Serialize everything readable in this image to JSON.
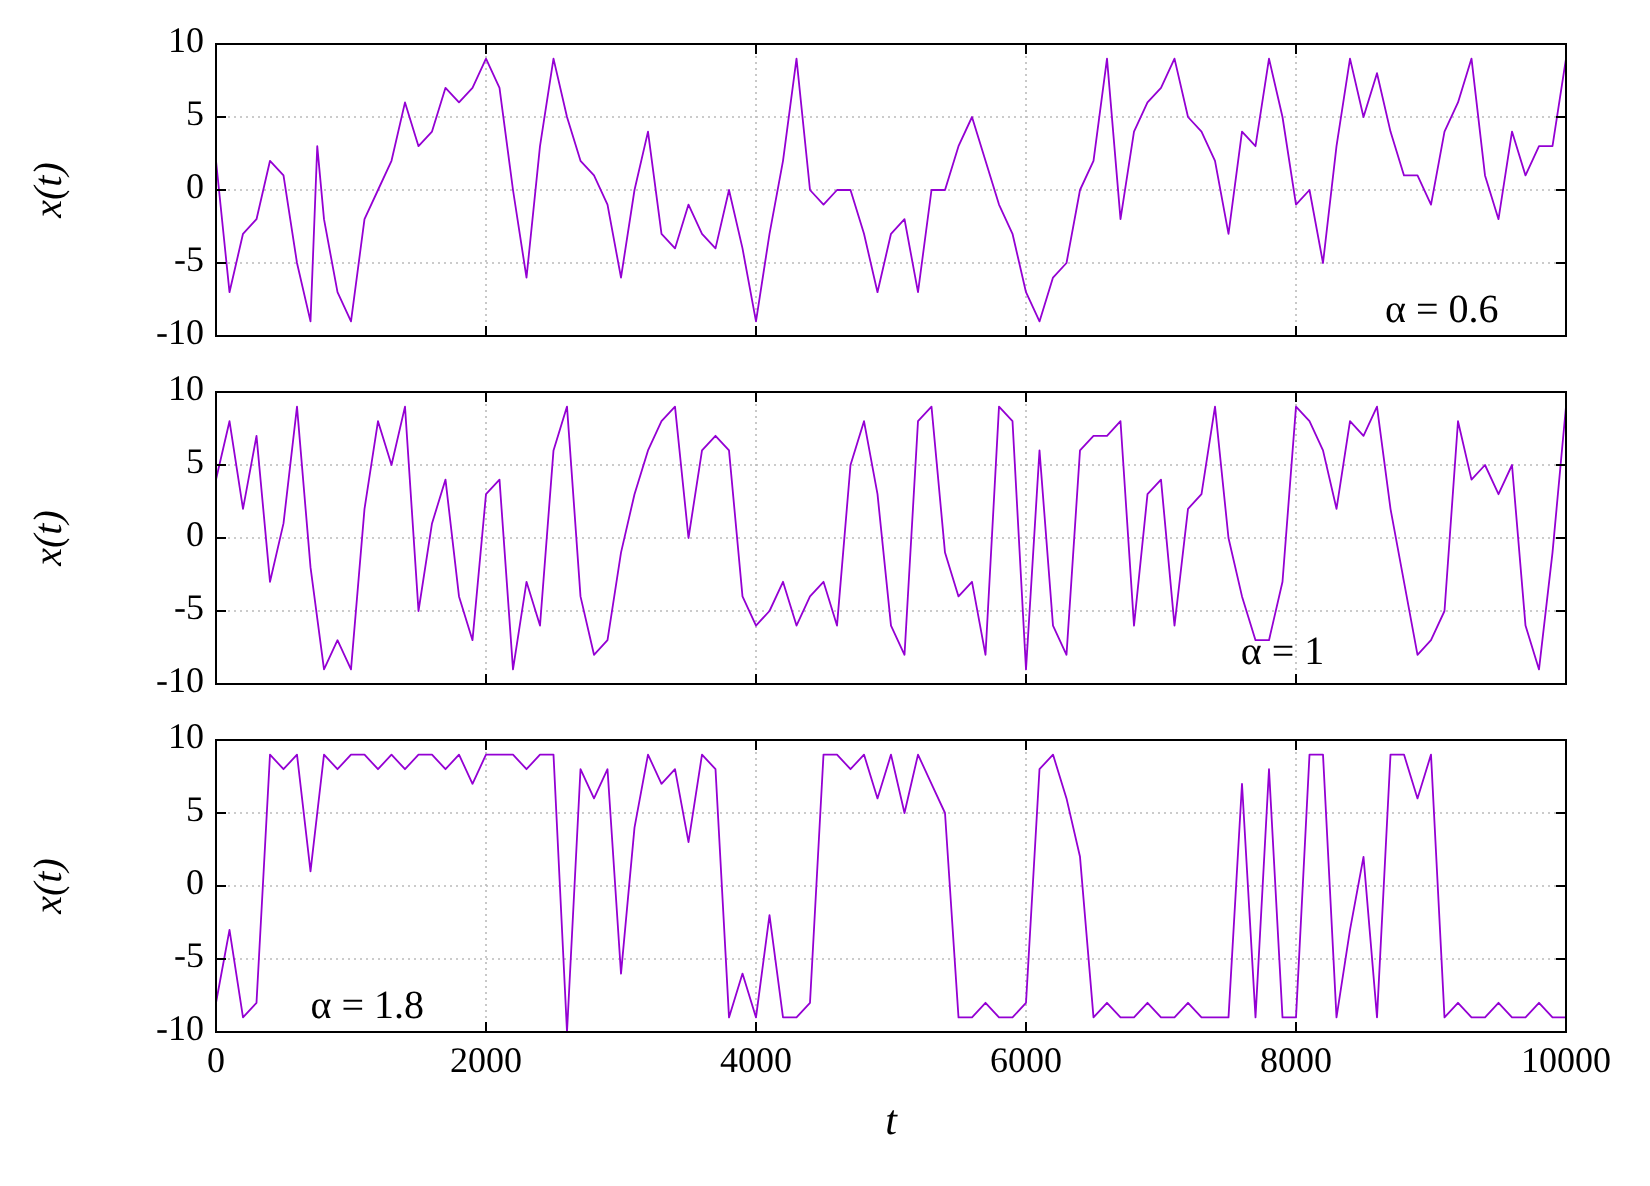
{
  "chart_data": [
    {
      "type": "line",
      "ylabel": "x(t)",
      "annotations": [
        "α = 0.6"
      ],
      "xlim": [
        0,
        10000
      ],
      "xticks": [
        0,
        2000,
        4000,
        6000,
        8000,
        10000
      ],
      "ylim": [
        -10,
        10
      ],
      "yticks": [
        -10,
        -5,
        0,
        5,
        10
      ],
      "grid": true,
      "tick_labels": "y",
      "line_style": "solid",
      "series": [
        {
          "color": "#9400d3",
          "x": [
            0,
            100,
            200,
            300,
            400,
            500,
            600,
            700,
            750,
            800,
            900,
            1000,
            1100,
            1200,
            1300,
            1400,
            1500,
            1600,
            1700,
            1800,
            1900,
            2000,
            2100,
            2200,
            2300,
            2400,
            2500,
            2600,
            2700,
            2800,
            2900,
            3000,
            3100,
            3200,
            3300,
            3400,
            3500,
            3600,
            3700,
            3800,
            3900,
            4000,
            4100,
            4200,
            4300,
            4400,
            4500,
            4600,
            4700,
            4800,
            4900,
            5000,
            5100,
            5200,
            5300,
            5400,
            5500,
            5600,
            5700,
            5800,
            5900,
            6000,
            6100,
            6200,
            6300,
            6400,
            6500,
            6600,
            6700,
            6800,
            6900,
            7000,
            7100,
            7200,
            7300,
            7400,
            7500,
            7600,
            7700,
            7800,
            7900,
            8000,
            8100,
            8200,
            8300,
            8400,
            8500,
            8600,
            8700,
            8800,
            8900,
            9000,
            9100,
            9200,
            9300,
            9400,
            9500,
            9600,
            9700,
            9800,
            9900,
            10000
          ],
          "values": [
            2,
            -7,
            -3,
            -2,
            2,
            1,
            -5,
            -9,
            3,
            -2,
            -7,
            -9,
            -2,
            0,
            2,
            6,
            3,
            4,
            7,
            6,
            7,
            9,
            7,
            0,
            -6,
            3,
            9,
            5,
            2,
            1,
            -1,
            -6,
            0,
            4,
            -3,
            -4,
            -1,
            -3,
            -4,
            0,
            -4,
            -9,
            -3,
            2,
            9,
            0,
            -1,
            0,
            0,
            -3,
            -7,
            -3,
            -2,
            -7,
            0,
            0,
            3,
            5,
            2,
            -1,
            -3,
            -7,
            -9,
            -6,
            -5,
            0,
            2,
            9,
            -2,
            4,
            6,
            7,
            9,
            5,
            4,
            2,
            -3,
            4,
            3,
            9,
            5,
            -1,
            0,
            -5,
            3,
            9,
            5,
            8,
            4,
            1,
            1,
            -1,
            4,
            6,
            9,
            1,
            -2,
            4,
            1,
            3,
            3,
            9
          ]
        }
      ]
    },
    {
      "type": "line",
      "ylabel": "x(t)",
      "annotations": [
        "α = 1"
      ],
      "xlim": [
        0,
        10000
      ],
      "xticks": [
        0,
        2000,
        4000,
        6000,
        8000,
        10000
      ],
      "ylim": [
        -10,
        10
      ],
      "yticks": [
        -10,
        -5,
        0,
        5,
        10
      ],
      "grid": true,
      "tick_labels": "y",
      "line_style": "solid",
      "series": [
        {
          "color": "#9400d3",
          "x": [
            0,
            100,
            200,
            300,
            400,
            500,
            600,
            700,
            800,
            900,
            1000,
            1100,
            1200,
            1300,
            1400,
            1500,
            1600,
            1700,
            1800,
            1900,
            2000,
            2100,
            2200,
            2300,
            2400,
            2500,
            2600,
            2700,
            2800,
            2900,
            3000,
            3100,
            3200,
            3300,
            3400,
            3500,
            3600,
            3700,
            3800,
            3900,
            4000,
            4100,
            4200,
            4300,
            4400,
            4500,
            4600,
            4700,
            4800,
            4900,
            5000,
            5100,
            5200,
            5300,
            5400,
            5500,
            5600,
            5700,
            5800,
            5900,
            6000,
            6100,
            6200,
            6300,
            6400,
            6500,
            6600,
            6700,
            6800,
            6900,
            7000,
            7100,
            7200,
            7300,
            7400,
            7500,
            7600,
            7700,
            7800,
            7900,
            8000,
            8100,
            8200,
            8300,
            8400,
            8500,
            8600,
            8700,
            8800,
            8900,
            9000,
            9100,
            9200,
            9300,
            9400,
            9500,
            9600,
            9700,
            9800,
            9900,
            10000
          ],
          "values": [
            4,
            8,
            2,
            7,
            -3,
            1,
            9,
            -2,
            -9,
            -7,
            -9,
            2,
            8,
            5,
            9,
            -5,
            1,
            4,
            -4,
            -7,
            3,
            4,
            -9,
            -3,
            -6,
            6,
            9,
            -4,
            -8,
            -7,
            -1,
            3,
            6,
            8,
            9,
            0,
            6,
            7,
            6,
            -4,
            -6,
            -5,
            -3,
            -6,
            -4,
            -3,
            -6,
            5,
            8,
            3,
            -6,
            -8,
            8,
            9,
            -1,
            -4,
            -3,
            -8,
            9,
            8,
            -9,
            6,
            -6,
            -8,
            6,
            7,
            7,
            8,
            -6,
            3,
            4,
            -6,
            2,
            3,
            9,
            0,
            -4,
            -7,
            -7,
            -3,
            9,
            8,
            6,
            2,
            8,
            7,
            9,
            2,
            -3,
            -8,
            -7,
            -5,
            8,
            4,
            5,
            3,
            5,
            -6,
            -9,
            -1,
            9
          ]
        }
      ]
    },
    {
      "type": "line",
      "ylabel": "x(t)",
      "xlabel": "t",
      "annotations": [
        "α = 1.8"
      ],
      "xlim": [
        0,
        10000
      ],
      "xticks": [
        0,
        2000,
        4000,
        6000,
        8000,
        10000
      ],
      "ylim": [
        -10,
        10
      ],
      "yticks": [
        -10,
        -5,
        0,
        5,
        10
      ],
      "grid": true,
      "line_style": "solid",
      "series": [
        {
          "color": "#9400d3",
          "x": [
            0,
            100,
            200,
            300,
            400,
            500,
            600,
            700,
            800,
            900,
            1000,
            1100,
            1200,
            1300,
            1400,
            1500,
            1600,
            1700,
            1800,
            1900,
            2000,
            2100,
            2200,
            2300,
            2400,
            2500,
            2600,
            2700,
            2800,
            2900,
            3000,
            3100,
            3200,
            3300,
            3400,
            3500,
            3600,
            3700,
            3800,
            3900,
            4000,
            4100,
            4200,
            4300,
            4400,
            4500,
            4600,
            4700,
            4800,
            4900,
            5000,
            5100,
            5200,
            5300,
            5400,
            5500,
            5600,
            5700,
            5800,
            5900,
            6000,
            6100,
            6200,
            6300,
            6400,
            6500,
            6600,
            6700,
            6800,
            6900,
            7000,
            7100,
            7200,
            7300,
            7400,
            7500,
            7600,
            7700,
            7800,
            7900,
            8000,
            8100,
            8200,
            8300,
            8400,
            8500,
            8600,
            8700,
            8800,
            8900,
            9000,
            9100,
            9200,
            9300,
            9400,
            9500,
            9600,
            9700,
            9800,
            9900,
            10000
          ],
          "values": [
            -8,
            -3,
            -9,
            -8,
            9,
            8,
            9,
            1,
            9,
            8,
            9,
            9,
            8,
            9,
            8,
            9,
            9,
            8,
            9,
            7,
            9,
            9,
            9,
            8,
            9,
            9,
            -10,
            8,
            6,
            8,
            -6,
            4,
            9,
            7,
            8,
            3,
            9,
            8,
            -9,
            -6,
            -9,
            -2,
            -9,
            -9,
            -8,
            9,
            9,
            8,
            9,
            6,
            9,
            5,
            9,
            7,
            5,
            -9,
            -9,
            -8,
            -9,
            -9,
            -8,
            8,
            9,
            6,
            2,
            -9,
            -8,
            -9,
            -9,
            -8,
            -9,
            -9,
            -8,
            -9,
            -9,
            -9,
            7,
            -9,
            8,
            -9,
            -9,
            9,
            9,
            -9,
            -3,
            2,
            -9,
            9,
            9,
            6,
            9,
            -9,
            -8,
            -9,
            -9,
            -8,
            -9,
            -9,
            -8,
            -9,
            -9
          ]
        }
      ]
    }
  ]
}
